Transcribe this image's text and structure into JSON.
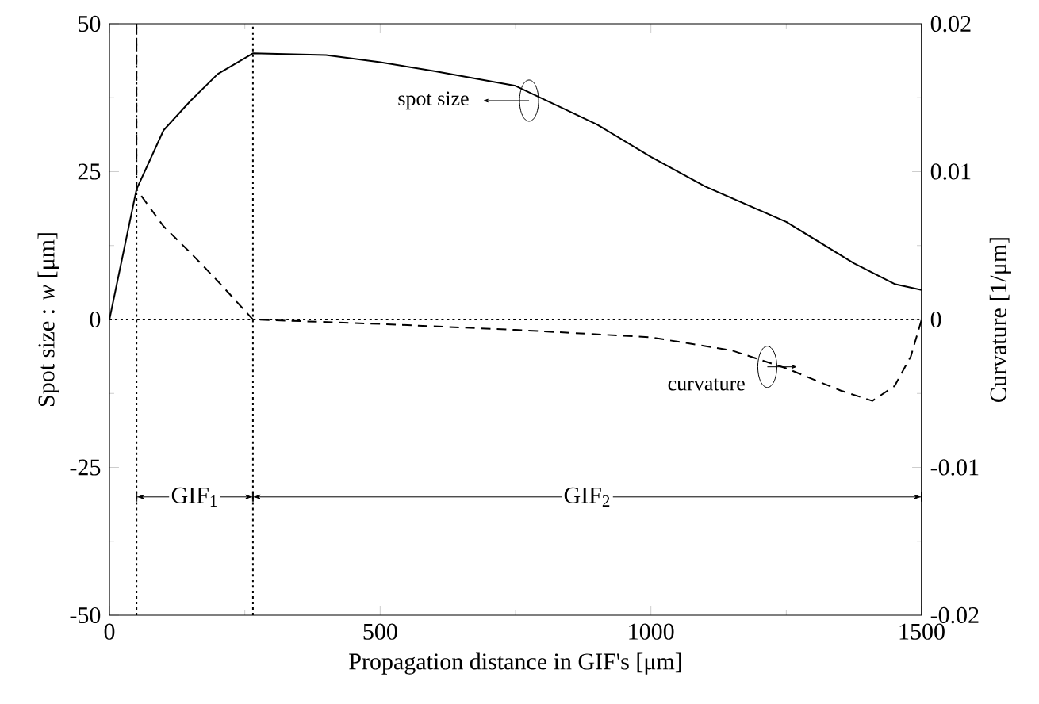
{
  "chart_data": {
    "type": "line",
    "xlabel": "Propagation distance in GIF's [μm]",
    "ylabel": "Spot size : *w* [μm]",
    "y2label": "Curvature [1/μm]",
    "xlim": [
      0,
      1500
    ],
    "xticks": [
      0,
      500,
      1000,
      1500
    ],
    "ylim": [
      -50,
      50
    ],
    "yticks": [
      -50,
      -25,
      0,
      25,
      50
    ],
    "y2lim": [
      -0.02,
      0.02
    ],
    "y2ticks": [
      -0.02,
      -0.01,
      0,
      0.01,
      0.02
    ],
    "grid": false,
    "marker": "none",
    "series": [
      {
        "color": "#000000",
        "line_style": "solid",
        "x": [
          0,
          50,
          100,
          150,
          200,
          265,
          400,
          500,
          600,
          750,
          900,
          1000,
          1100,
          1250,
          1375,
          1450,
          1500
        ],
        "values": [
          0,
          22,
          32,
          37,
          41.5,
          45,
          44.7,
          43.5,
          42,
          39.5,
          33,
          27.5,
          22.5,
          16.5,
          9.5,
          6,
          5
        ]
      },
      {
        "color": "#000000",
        "line_style": "dashed",
        "axis": "y2",
        "x": [
          50,
          50,
          100,
          150,
          200,
          265,
          500,
          750,
          1000,
          1150,
          1250,
          1350,
          1409,
          1450,
          1480,
          1500
        ],
        "values": [
          0.02,
          0.0088,
          0.0063,
          0.0045,
          0.0026,
          0,
          -0.0003,
          -0.0007,
          -0.0012,
          -0.0021,
          -0.0033,
          -0.0048,
          -0.0055,
          -0.0045,
          -0.0025,
          0
        ]
      }
    ],
    "ref_lines": [
      {
        "axis": "x",
        "value": 50,
        "line_style": "dotted"
      },
      {
        "axis": "x",
        "value": 265,
        "line_style": "dotted"
      },
      {
        "axis": "y",
        "value": 0,
        "line_style": "dotted"
      }
    ],
    "annotations": [
      "spot size",
      "curvature",
      {
        "text": "GIF$_{1}$",
        "x": 50,
        "y": -30
      },
      {
        "text": "GIF$_{2}$",
        "x": 265,
        "y": -30
      }
    ]
  }
}
